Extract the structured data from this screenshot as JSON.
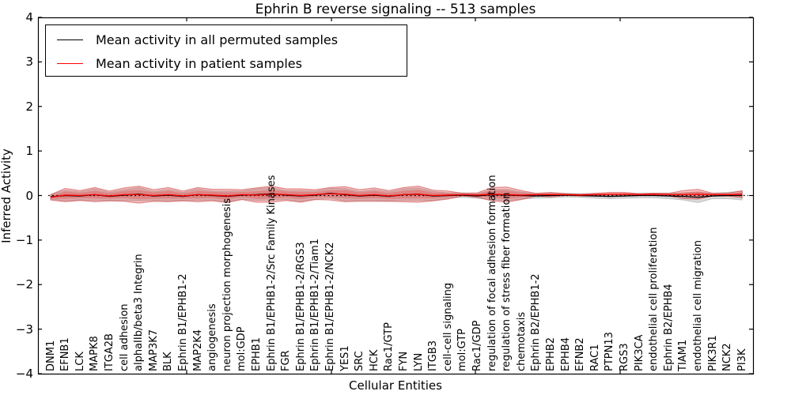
{
  "chart_data": {
    "type": "line",
    "title": "Ephrin B reverse signaling -- 513 samples",
    "xlabel": "Cellular Entities",
    "ylabel": "Inferred Activity",
    "ylim": [
      -4,
      4
    ],
    "yticks": [
      "4",
      "3",
      "2",
      "1",
      "0",
      "−1",
      "−2",
      "−3",
      "−4"
    ],
    "ytick_values": [
      4,
      3,
      2,
      1,
      0,
      -1,
      -2,
      -3,
      -4
    ],
    "grid": false,
    "legend_position": "upper left",
    "legend": [
      {
        "label": "Mean activity in all permuted samples",
        "color": "#000000"
      },
      {
        "label": "Mean activity in patient samples",
        "color": "#ff0000"
      }
    ],
    "categories": [
      "DNM1",
      "EFNB1",
      "LCK",
      "MAPK8",
      "ITGA2B",
      "cell adhesion",
      "alphaIIb/beta3 Integrin",
      "MAP3K7",
      "BLK",
      "Ephrin B1/EPHB1-2",
      "MAP2K4",
      "angiogenesis",
      "neuron projection morphogenesis",
      "mol:GDP",
      "EPHB1",
      "Ephrin B1/EPHB1-2/Src Family Kinases",
      "FGR",
      "Ephrin B1/EPHB1-2/RGS3",
      "Ephrin B1/EPHB1-2/Tiam1",
      "Ephrin B1/EPHB1-2/NCK2",
      "YES1",
      "SRC",
      "HCK",
      "Rac1/GTP",
      "FYN",
      "LYN",
      "ITGB3",
      "cell-cell signaling",
      "mol:GTP",
      "Rac1/GDP",
      "regulation of focal adhesion formation",
      "regulation of stress fiber formation",
      "chemotaxis",
      "Ephrin B2/EPHB1-2",
      "EPHB2",
      "EPHB4",
      "EFNB2",
      "RAC1",
      "PTPN13",
      "RGS3",
      "PIK3CA",
      "endothelial cell proliferation",
      "Ephrin B2/EPHB4",
      "TIAM1",
      "endothelial cell migration",
      "PIK3R1",
      "NCK2",
      "PI3K"
    ],
    "series": [
      {
        "name": "Mean activity in all permuted samples",
        "color": "#000000",
        "values": [
          -0.03,
          0.0,
          -0.01,
          0.02,
          -0.02,
          0.01,
          0.03,
          -0.01,
          0.01,
          -0.02,
          0.02,
          0.0,
          -0.02,
          0.01,
          0.02,
          0.04,
          0.01,
          -0.01,
          0.01,
          0.05,
          0.02,
          -0.01,
          0.01,
          -0.02,
          0.02,
          0.03,
          -0.01,
          0.0,
          0.01,
          -0.01,
          0.02,
          0.01,
          0.0,
          -0.01,
          0.0,
          0.01,
          0.0,
          -0.01,
          -0.02,
          -0.01,
          0.0,
          0.0,
          -0.01,
          -0.02,
          -0.04,
          -0.01,
          0.0,
          0.0
        ]
      },
      {
        "name": "Mean activity in patient samples",
        "color": "#ff0000",
        "values": [
          -0.04,
          0.01,
          0.0,
          0.02,
          -0.01,
          0.02,
          0.02,
          0.0,
          0.02,
          -0.01,
          0.02,
          0.01,
          -0.01,
          0.02,
          0.01,
          0.03,
          0.02,
          0.0,
          0.02,
          0.04,
          0.03,
          0.0,
          0.02,
          -0.01,
          0.02,
          0.03,
          0.0,
          0.01,
          0.02,
          0.01,
          0.03,
          0.02,
          0.01,
          0.02,
          0.02,
          0.02,
          0.01,
          0.02,
          0.03,
          0.03,
          0.02,
          0.03,
          0.02,
          0.02,
          0.03,
          0.02,
          0.02,
          0.03
        ]
      }
    ],
    "bands": [
      {
        "name": "permuted samples spread",
        "fill": "rgba(120,120,120,0.28)",
        "edge": "rgba(120,120,120,0.35)",
        "center_series": 0,
        "halfwidths": [
          0.05,
          0.12,
          0.09,
          0.13,
          0.09,
          0.12,
          0.15,
          0.1,
          0.13,
          0.09,
          0.13,
          0.1,
          0.12,
          0.09,
          0.13,
          0.14,
          0.1,
          0.12,
          0.09,
          0.11,
          0.14,
          0.1,
          0.12,
          0.1,
          0.13,
          0.14,
          0.1,
          0.06,
          0.05,
          0.05,
          0.11,
          0.13,
          0.08,
          0.05,
          0.05,
          0.04,
          0.04,
          0.05,
          0.05,
          0.05,
          0.05,
          0.05,
          0.06,
          0.08,
          0.12,
          0.06,
          0.07,
          0.1
        ]
      },
      {
        "name": "patient samples spread",
        "fill": "rgba(230,40,40,0.28)",
        "edge": "rgba(200,40,40,0.55)",
        "center_series": 1,
        "halfwidths": [
          0.06,
          0.15,
          0.11,
          0.16,
          0.11,
          0.15,
          0.19,
          0.13,
          0.16,
          0.11,
          0.16,
          0.13,
          0.15,
          0.11,
          0.16,
          0.18,
          0.13,
          0.15,
          0.11,
          0.14,
          0.17,
          0.13,
          0.15,
          0.12,
          0.16,
          0.18,
          0.12,
          0.09,
          0.03,
          0.05,
          0.15,
          0.17,
          0.1,
          0.03,
          0.05,
          0.02,
          0.02,
          0.03,
          0.04,
          0.04,
          0.02,
          0.02,
          0.03,
          0.09,
          0.11,
          0.03,
          0.03,
          0.08
        ]
      }
    ],
    "zero_line": 0
  }
}
